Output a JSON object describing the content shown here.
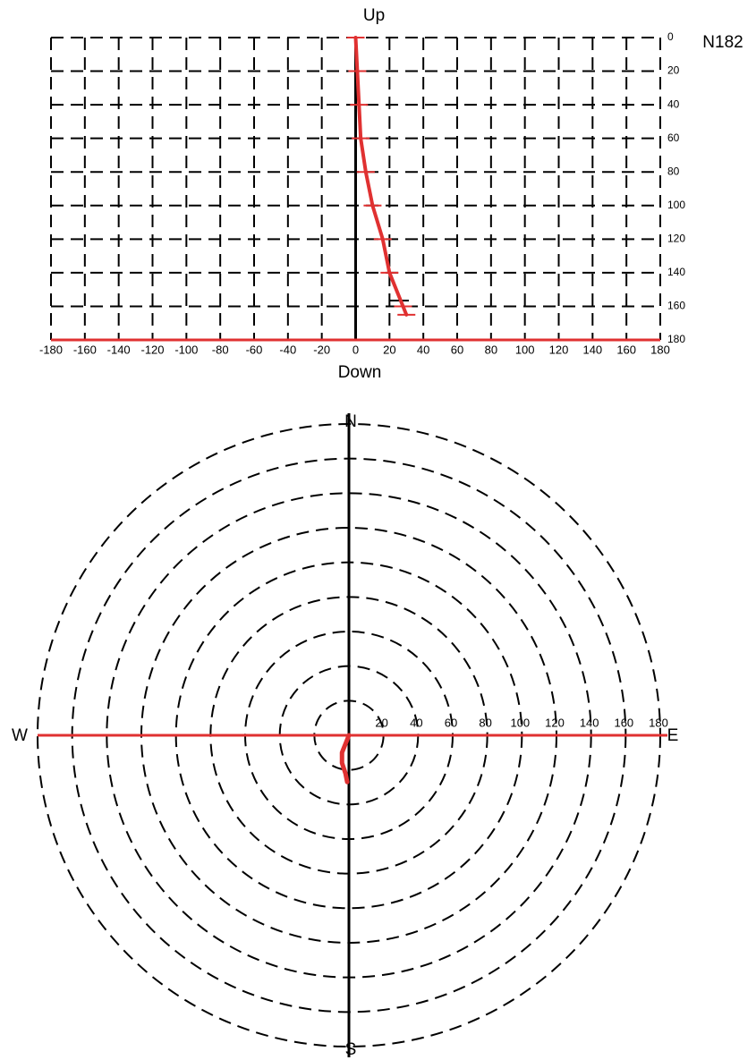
{
  "chart_data": [
    {
      "type": "section",
      "top_label": "Up",
      "bottom_label": "Down",
      "annotation": "N182",
      "x": [
        0,
        1,
        2,
        3,
        6,
        10,
        16,
        20,
        28,
        30
      ],
      "values": [
        0,
        20,
        40,
        60,
        80,
        100,
        120,
        140,
        160,
        165
      ],
      "color": "#e03131",
      "xlim": [
        -180,
        180
      ],
      "ylim": [
        0,
        180
      ],
      "y_inverted": true,
      "xticks": [
        -180,
        -160,
        -140,
        -120,
        -100,
        -80,
        -60,
        -40,
        -20,
        0,
        20,
        40,
        60,
        80,
        100,
        120,
        140,
        160,
        180
      ],
      "yticks": [
        0,
        20,
        40,
        60,
        80,
        100,
        120,
        140,
        160,
        180
      ],
      "grid": true
    },
    {
      "type": "plan",
      "north": "N",
      "south": "S",
      "east": "E",
      "west": "W",
      "x": [
        0,
        -2,
        -4,
        -4,
        -2,
        -1
      ],
      "values": [
        0,
        -5,
        -10,
        -16,
        -22,
        -27
      ],
      "color": "#e03131",
      "rlim": [
        0,
        180
      ],
      "rticks": [
        20,
        40,
        60,
        80,
        100,
        120,
        140,
        160,
        180
      ]
    }
  ]
}
